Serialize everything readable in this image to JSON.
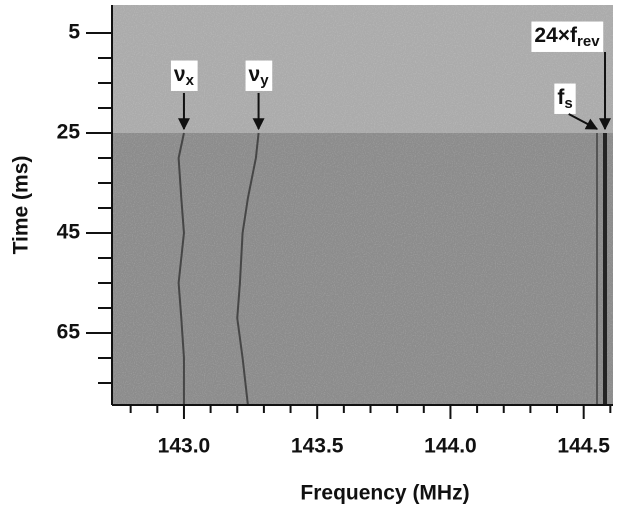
{
  "chart_data": {
    "type": "spectrogram",
    "xlabel": "Frequency (MHz)",
    "ylabel": "Time (ms)",
    "xlim": [
      142.73,
      144.61
    ],
    "ylim": [
      -0.6,
      79.4
    ],
    "y_inverted": true,
    "xticks": [
      {
        "value": 143,
        "label": "143.0"
      },
      {
        "value": 143.5,
        "label": "143.5"
      },
      {
        "value": 144,
        "label": "144.0"
      },
      {
        "value": 144.5,
        "label": "144.5"
      }
    ],
    "xminorticks": [
      142.8,
      142.9,
      143.1,
      143.2,
      143.3,
      143.4,
      143.6,
      143.7,
      143.8,
      143.9,
      144.1,
      144.2,
      144.3,
      144.4,
      144.6
    ],
    "yticks": [
      5,
      25,
      45,
      65
    ],
    "yminorticks": [
      10,
      15,
      20,
      30,
      35,
      40,
      50,
      55,
      60,
      70,
      75
    ],
    "regions": [
      {
        "ylim": [
          -0.6,
          25
        ],
        "color": "#ababab"
      },
      {
        "ylim": [
          25,
          79.4
        ],
        "color": "#8c8c8c"
      }
    ],
    "series": [
      {
        "label": "ν",
        "label_sub": "x",
        "color": "#3a3a3a",
        "x": [
          143.0,
          142.98,
          142.99,
          143.0,
          142.98,
          142.99,
          143.0,
          143.0
        ],
        "y": [
          25,
          30,
          38,
          45,
          55,
          62,
          70,
          79.4
        ]
      },
      {
        "label": "ν",
        "label_sub": "y",
        "color": "#3a3a3a",
        "x": [
          143.28,
          143.27,
          143.24,
          143.22,
          143.21,
          143.2,
          143.22,
          143.24
        ],
        "y": [
          25,
          30,
          38,
          45,
          55,
          62,
          70,
          79.4
        ]
      },
      {
        "label": "f",
        "label_sub": "s",
        "color": "#4a4a4a",
        "x": [
          144.55,
          144.55
        ],
        "y": [
          25,
          79.4
        ]
      },
      {
        "label": "24×f",
        "label_sub": "rev",
        "color": "#111111",
        "x": [
          144.58,
          144.58
        ],
        "y": [
          25,
          79.4
        ]
      }
    ]
  }
}
